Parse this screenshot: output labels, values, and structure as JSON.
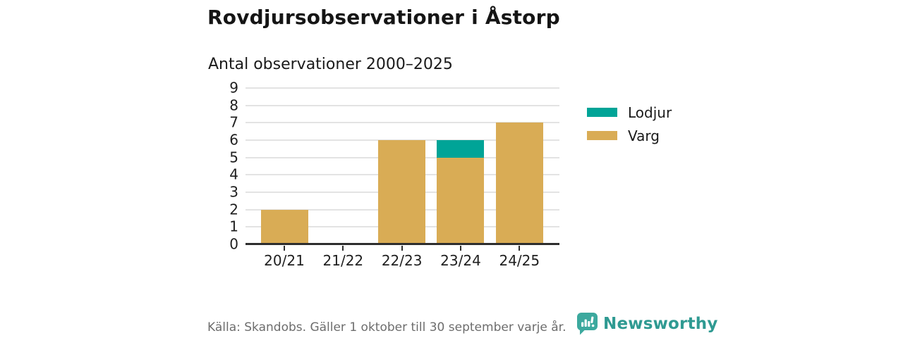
{
  "header": {
    "title": "Rovdjursobservationer i Åstorp",
    "subtitle": "Antal observationer 2000–2025"
  },
  "chart_data": {
    "type": "bar",
    "stacked": true,
    "title": "Rovdjursobservationer i Åstorp",
    "subtitle": "Antal observationer 2000–2025",
    "categories": [
      "20/21",
      "21/22",
      "22/23",
      "23/24",
      "24/25"
    ],
    "series": [
      {
        "name": "Lodjur",
        "color": "#00a497",
        "values": [
          0,
          0,
          0,
          1,
          0
        ]
      },
      {
        "name": "Varg",
        "color": "#d9ac55",
        "values": [
          2,
          0,
          6,
          5,
          7
        ]
      }
    ],
    "stack_order_bottom_to_top": [
      "Varg",
      "Lodjur"
    ],
    "totals": [
      2,
      0,
      6,
      6,
      7
    ],
    "xlabel": "",
    "ylabel": "",
    "ylim": [
      0,
      9
    ],
    "yticks": [
      0,
      1,
      2,
      3,
      4,
      5,
      6,
      7,
      8,
      9
    ],
    "grid": true,
    "legend_position": "right"
  },
  "footer": {
    "source": "Källa: Skandobs. Gäller 1 oktober till 30 september varje år.",
    "brand": "Newsworthy"
  },
  "colors": {
    "lodjur_teal": "#00a497",
    "varg_gold": "#d9ac55",
    "grid": "#e3e3e3",
    "axis": "#2e2e2e",
    "text": "#1a1a1a",
    "muted_text": "#6d6d6d",
    "brand_text_teal": "#2f9a92",
    "brand_icon_teal": "#3ca99e"
  }
}
